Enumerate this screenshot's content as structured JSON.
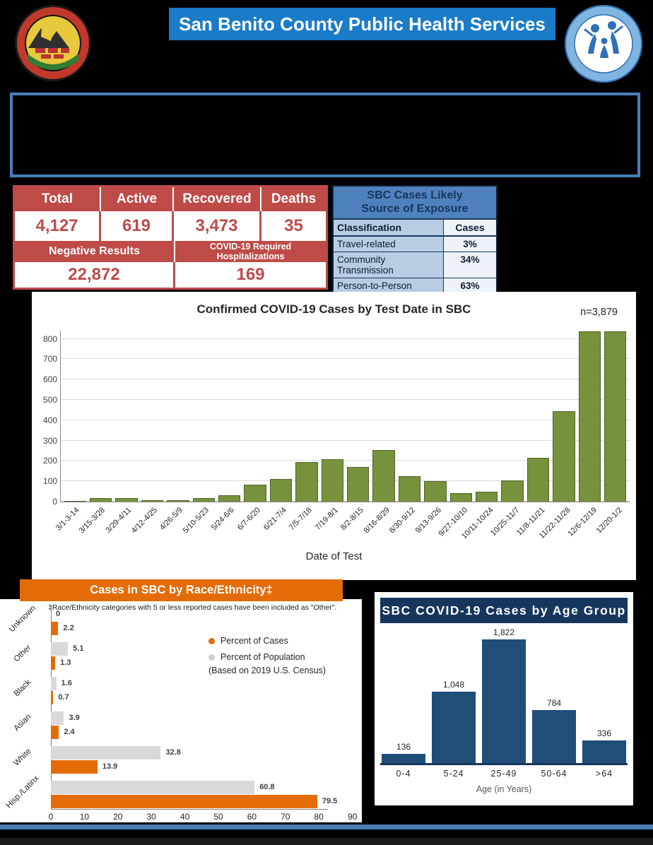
{
  "header": {
    "title": "San Benito County Public Health Services",
    "left_seal": "San Benito County seal",
    "right_logo": "SBC Public Health Services logo"
  },
  "summary": {
    "columns": [
      "Total",
      "Active",
      "Recovered",
      "Deaths"
    ],
    "values": [
      "4,127",
      "619",
      "3,473",
      "35"
    ],
    "negative_label": "Negative Results",
    "negative_value": "22,872",
    "hospitalizations_label": "COVID-19 Required Hospitalizations",
    "hospitalizations_value": "169"
  },
  "exposure": {
    "title_line1": "SBC Cases Likely",
    "title_line2": "Source of Exposure",
    "col_classification": "Classification",
    "col_cases": "Cases",
    "rows": [
      {
        "classification": "Travel-related",
        "cases": "3%"
      },
      {
        "classification": "Community Transmission",
        "cases": "34%"
      },
      {
        "classification": "Person-to-Person",
        "cases": "63%"
      }
    ]
  },
  "chart_data": [
    {
      "id": "test-date",
      "type": "bar",
      "title": "Confirmed COVID-19 Cases by Test Date in SBC",
      "n_label": "n=3,879",
      "xlabel": "Date of Test",
      "categories": [
        "3/1-3-14",
        "3/15-3/28",
        "3/29-4/11",
        "4/12-4/25",
        "4/26-5/9",
        "5/10-5/23",
        "5/24-6/6",
        "6/7-6/20",
        "6/21-7/4",
        "7/5-7/18",
        "7/19-8/1",
        "8/2-8/15",
        "8/16-8/29",
        "8/30-9/12",
        "9/13-9/26",
        "9/27-10/10",
        "10/11-10/24",
        "10/25-11/7",
        "11/8-11/21",
        "11/22-11/28",
        "12/6-12/19",
        "12/20-1/2"
      ],
      "values": [
        5,
        18,
        18,
        7,
        8,
        18,
        32,
        85,
        112,
        195,
        210,
        170,
        255,
        125,
        100,
        40,
        48,
        103,
        215,
        445,
        835,
        835
      ],
      "ylim": [
        0,
        840
      ],
      "yticks": [
        0,
        100,
        200,
        300,
        400,
        500,
        600,
        700,
        800
      ],
      "grid": true,
      "bar_color": "#76923C"
    },
    {
      "id": "race-ethnicity",
      "type": "bar-horizontal",
      "title": "Cases in SBC by Race/Ethnicity‡",
      "footnote": "‡Race/Ethnicity categories with 5 or less reported cases have been included as \"Other\".",
      "categories": [
        "Unknown",
        "Other",
        "Black",
        "Asian",
        "White",
        "Hisp./Latinx"
      ],
      "series": [
        {
          "name": "Percent of Population",
          "color": "#D9D9D9",
          "values": [
            0,
            5.1,
            1.6,
            3.9,
            32.8,
            60.8
          ]
        },
        {
          "name": "Percent of Cases",
          "color": "#E36C09",
          "values": [
            2.2,
            1.3,
            0.7,
            2.4,
            13.9,
            79.5
          ]
        }
      ],
      "legend": [
        "Percent of Cases",
        "Percent of Population",
        "(Based on 2019 U.S. Census)"
      ],
      "legend_position": "center-right",
      "xlim": [
        0,
        90
      ],
      "xticks": [
        0,
        10,
        20,
        30,
        40,
        50,
        60,
        70,
        80,
        90
      ]
    },
    {
      "id": "age-group",
      "type": "bar",
      "title": "SBC COVID-19 Cases by Age Group",
      "categories": [
        "0-4",
        "5-24",
        "25-49",
        "50-64",
        ">64"
      ],
      "values": [
        136,
        1048,
        1822,
        784,
        336
      ],
      "value_labels": [
        "136",
        "1,048",
        "1,822",
        "784",
        "336"
      ],
      "xlabel": "Age (in Years)",
      "ylim": [
        0,
        1900
      ],
      "bar_color": "#1F4E79"
    }
  ],
  "colors": {
    "header_blue": "#1A7BC9",
    "table_red": "#BE4B48",
    "exposure_blue": "#4F81BD",
    "exposure_light_blue": "#B8CCE4",
    "olive_bar": "#76923C",
    "orange": "#E36C09",
    "navy": "#17365D",
    "age_bar_navy": "#1F4E79",
    "population_gray": "#D9D9D9",
    "divider_blue": "#4A7EBB"
  }
}
